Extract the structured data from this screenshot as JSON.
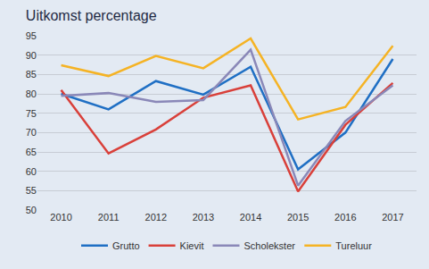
{
  "chart_data": {
    "type": "line",
    "title": "Uitkomst percentage",
    "categories": [
      "2010",
      "2011",
      "2012",
      "2013",
      "2014",
      "2015",
      "2016",
      "2017"
    ],
    "series": [
      {
        "name": "Grutto",
        "color": "#1f6fc4",
        "values": [
          80.0,
          76.0,
          83.3,
          79.8,
          87.0,
          60.5,
          70.0,
          89.0
        ]
      },
      {
        "name": "Kievit",
        "color": "#d9403a",
        "values": [
          81.0,
          64.6,
          70.8,
          79.0,
          82.2,
          54.8,
          72.0,
          82.8
        ]
      },
      {
        "name": "Scholekster",
        "color": "#8a88b8",
        "values": [
          79.5,
          80.2,
          77.9,
          78.4,
          91.4,
          56.3,
          73.0,
          82.2
        ]
      },
      {
        "name": "Tureluur",
        "color": "#f5b324",
        "values": [
          87.4,
          84.6,
          89.8,
          86.6,
          94.3,
          73.4,
          76.6,
          92.4
        ]
      }
    ],
    "ylim": [
      50,
      95
    ],
    "yticks": [
      50,
      55,
      60,
      65,
      70,
      75,
      80,
      85,
      90,
      95
    ],
    "grid": true,
    "legend": "bottom"
  }
}
